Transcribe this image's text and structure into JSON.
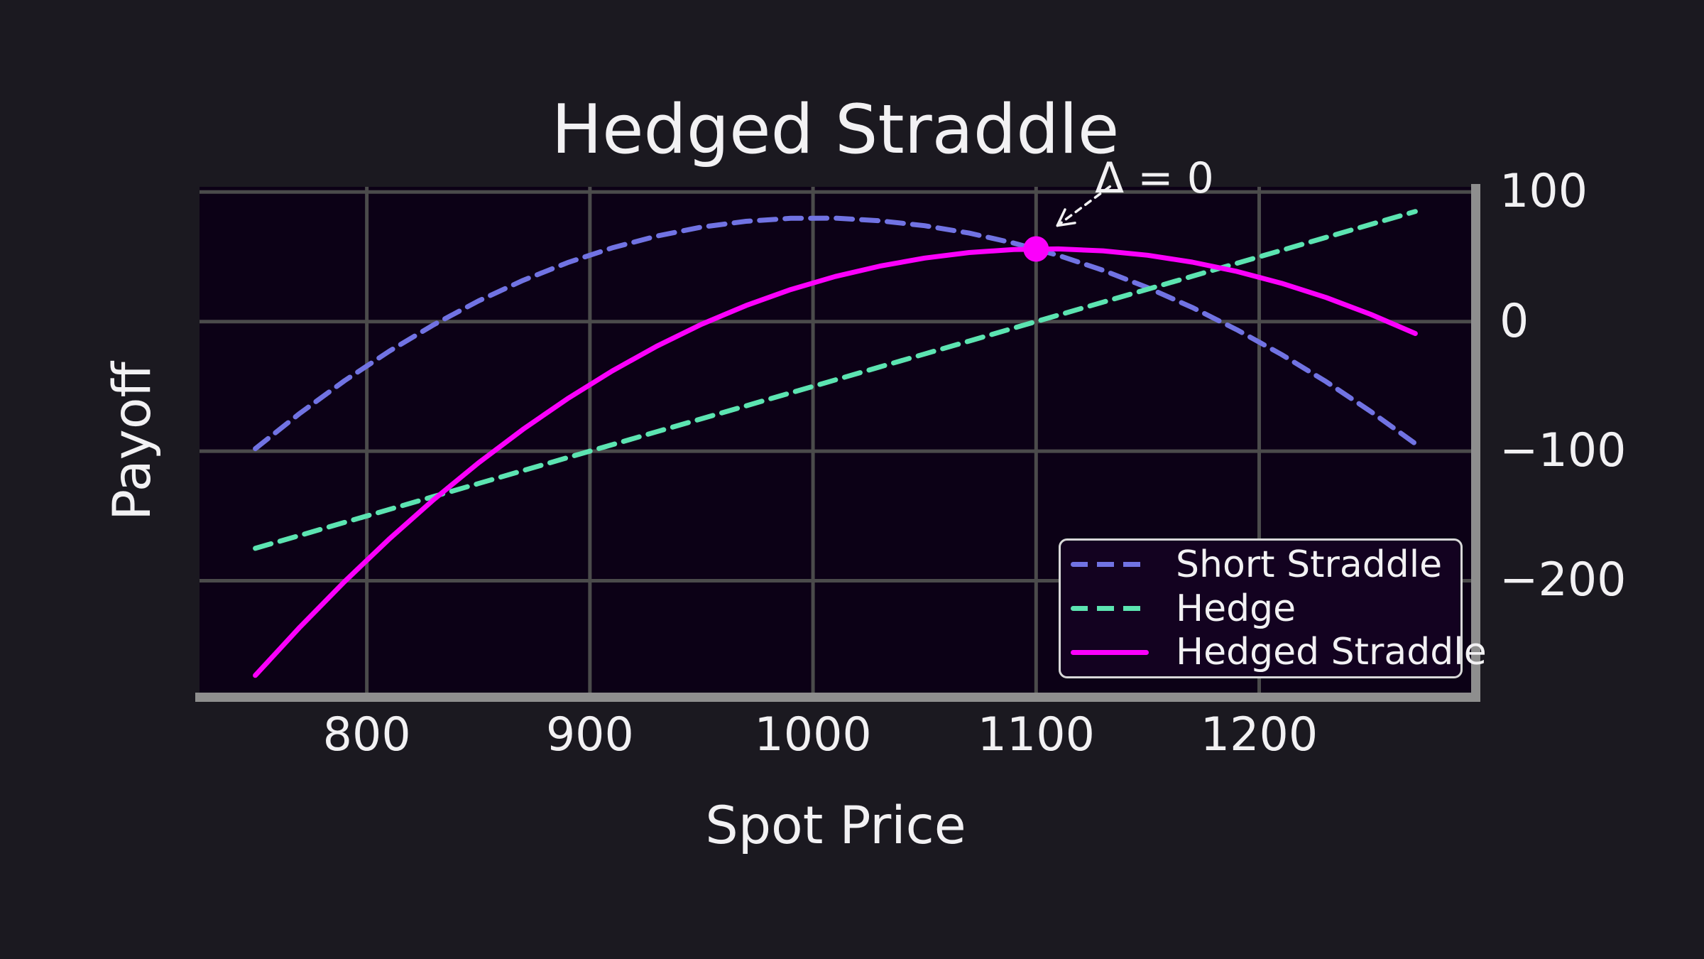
{
  "colors": {
    "background": "#1b1920",
    "plot_bg": "#0c0116",
    "grid": "#4b4b4b",
    "spine": "#8e8e8e",
    "text": "#f2f1f3",
    "legend_bg": "#130220",
    "legend_border": "#d8d8d8",
    "annotation_arrow": "#f2f1f3"
  },
  "chart_data": {
    "type": "line",
    "title": "Hedged Straddle",
    "xlabel": "Spot Price",
    "ylabel": "Payoff",
    "xlim": [
      725,
      1295
    ],
    "ylim": [
      -288,
      104
    ],
    "grid": true,
    "legend_position": "lower right",
    "xticks": {
      "values": [
        800,
        900,
        1000,
        1100,
        1200
      ],
      "labels": [
        "800",
        "900",
        "1000",
        "1100",
        "1200"
      ]
    },
    "yticks": {
      "values": [
        100,
        0,
        -100,
        -200
      ],
      "labels": [
        "100",
        "0",
        "−100",
        "−200"
      ]
    },
    "x": [
      750,
      770,
      790,
      810,
      830,
      850,
      870,
      890,
      910,
      930,
      950,
      970,
      990,
      1010,
      1030,
      1050,
      1070,
      1090,
      1110,
      1130,
      1150,
      1170,
      1190,
      1210,
      1230,
      1250,
      1270
    ],
    "series": [
      {
        "name": "Short Straddle",
        "color": "#7173e3",
        "dash": true,
        "values": [
          -98.1,
          -70.8,
          -45.7,
          -22.9,
          -2.4,
          15.9,
          31.8,
          45.5,
          56.9,
          66.0,
          72.9,
          77.4,
          79.7,
          79.8,
          77.8,
          74.0,
          68.3,
          60.6,
          51.1,
          39.6,
          26.2,
          10.9,
          -6.3,
          -25.4,
          -46.4,
          -69.4,
          -94.2
        ]
      },
      {
        "name": "Hedge",
        "color": "#5ce4b1",
        "dash": true,
        "values": [
          -175,
          -165,
          -155,
          -145,
          -135,
          -125,
          -115,
          -105,
          -95,
          -85,
          -75,
          -65,
          -55,
          -45,
          -35,
          -25,
          -15,
          -5,
          5,
          15,
          25,
          35,
          45,
          55,
          65,
          75,
          85
        ]
      },
      {
        "name": "Hedged Straddle",
        "color": "#fb00fb",
        "dash": false,
        "values": [
          -273.1,
          -235.8,
          -200.7,
          -167.9,
          -137.4,
          -109.1,
          -83.2,
          -59.5,
          -38.1,
          -19.0,
          -2.1,
          12.4,
          24.7,
          34.8,
          42.8,
          49.0,
          53.3,
          55.6,
          56.1,
          54.6,
          51.2,
          45.9,
          38.7,
          29.6,
          18.6,
          5.6,
          -9.2
        ]
      }
    ],
    "annotation": {
      "text": "Δ = 0",
      "point": {
        "x": 1100,
        "y": 56
      },
      "marker_color": "#fb00fb"
    }
  }
}
